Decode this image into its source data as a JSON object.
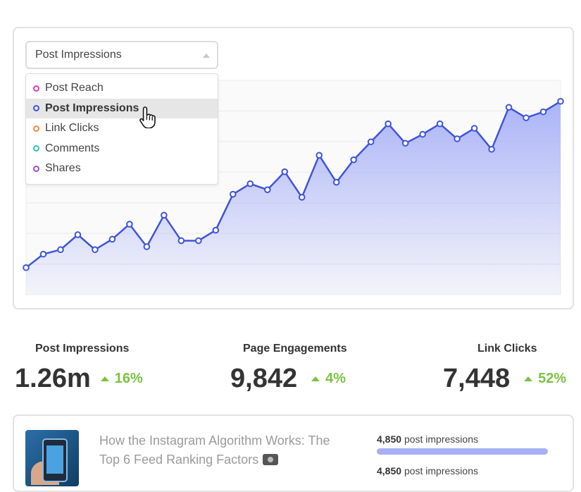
{
  "dropdown": {
    "selected": "Post Impressions",
    "options": [
      {
        "label": "Post Reach",
        "color": "#d93dbf"
      },
      {
        "label": "Post Impressions",
        "color": "#3f55d8",
        "active": true
      },
      {
        "label": "Link Clicks",
        "color": "#f28a3c"
      },
      {
        "label": "Comments",
        "color": "#2fc0d0"
      },
      {
        "label": "Shares",
        "color": "#9b4fdc"
      }
    ]
  },
  "chart_data": {
    "type": "area",
    "series": [
      {
        "values": [
          0,
          9,
          12,
          22,
          12,
          19,
          29,
          14,
          35,
          18,
          18,
          25,
          49,
          56,
          52,
          64,
          47,
          75,
          57,
          72,
          84,
          96,
          83,
          89,
          96,
          86,
          93,
          79,
          107,
          100,
          104,
          111
        ]
      }
    ],
    "ylim": [
      -18,
      125
    ],
    "grid": true,
    "line_color": "#3f55d8",
    "fill_color": "#a7b0f7"
  },
  "stats": [
    {
      "label": "Post Impressions",
      "value": "1.26m",
      "change": "16%"
    },
    {
      "label": "Page Engagements",
      "value": "9,842",
      "change": "4%"
    },
    {
      "label": "Link Clicks",
      "value": "7,448",
      "change": "52%"
    }
  ],
  "post": {
    "title": "How the Instagram Algorithm Works: The Top 6 Feed Ranking Factors",
    "metrics": [
      {
        "count": "4,850",
        "label": "post impressions",
        "fraction": 1.0
      },
      {
        "count": "4,850",
        "label": "post impressions"
      }
    ]
  }
}
